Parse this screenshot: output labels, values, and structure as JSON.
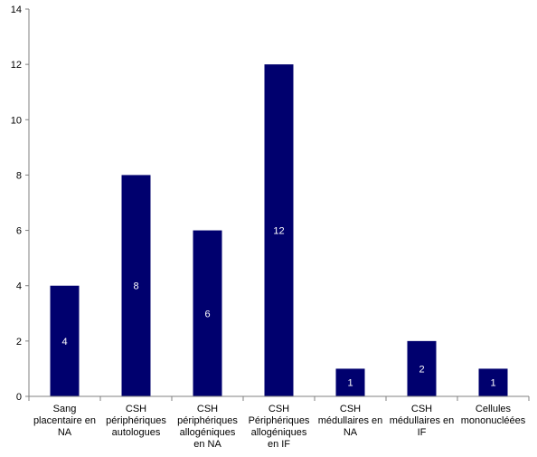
{
  "chart_data": {
    "type": "bar",
    "title": "",
    "xlabel": "",
    "ylabel": "",
    "ylim": [
      0,
      14
    ],
    "ytick_step": 2,
    "grid": false,
    "legend": "none",
    "bar_color": "#00006e",
    "axis_color": "#808080",
    "categories": [
      [
        "Sang",
        "placentaire en",
        "NA"
      ],
      [
        "CSH",
        "périphériques",
        "autologues"
      ],
      [
        "CSH",
        "périphériques",
        "allogéniques",
        "en NA"
      ],
      [
        "CSH",
        "Périphériques",
        "allogéniques",
        "en IF"
      ],
      [
        "CSH",
        "médullaires en",
        "NA"
      ],
      [
        "CSH",
        "médullaires en",
        "IF"
      ],
      [
        "Cellules",
        "mononucléées"
      ]
    ],
    "values": [
      4,
      8,
      6,
      12,
      1,
      2,
      1
    ],
    "data_labels": [
      "4",
      "8",
      "6",
      "12",
      "1",
      "2",
      "1"
    ]
  }
}
